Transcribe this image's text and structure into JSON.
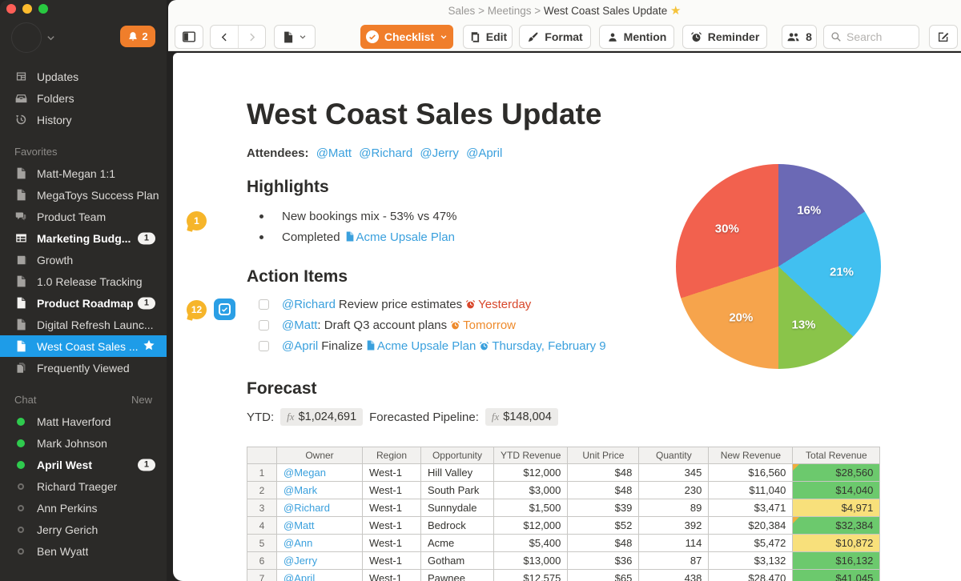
{
  "colors": {
    "accent_orange": "#f07e2b",
    "selected_blue": "#1e9ce8",
    "link_blue": "#3aa0dd",
    "badge_yellow": "#f6b52a",
    "online_green": "#2fcb4e",
    "cell_green": "#6cc96d",
    "cell_yellow": "#f8e07b"
  },
  "sidebar": {
    "notification_count": "2",
    "nav": [
      {
        "label": "Updates",
        "icon": "updates-icon"
      },
      {
        "label": "Folders",
        "icon": "folders-icon"
      },
      {
        "label": "History",
        "icon": "history-icon"
      }
    ],
    "favorites_header": "Favorites",
    "favorites": [
      {
        "label": "Matt-Megan 1:1",
        "icon": "document"
      },
      {
        "label": "MegaToys Success Plan",
        "icon": "document"
      },
      {
        "label": "Product Team",
        "icon": "chat"
      },
      {
        "label": "Marketing Budg...",
        "icon": "spreadsheet",
        "bold": true,
        "badge": "1"
      },
      {
        "label": "Growth",
        "icon": "slides"
      },
      {
        "label": "1.0 Release Tracking",
        "icon": "document"
      },
      {
        "label": "Product Roadmap",
        "icon": "document",
        "bold": true,
        "badge": "1"
      },
      {
        "label": "Digital Refresh Launc...",
        "icon": "document"
      },
      {
        "label": "West Coast Sales ...",
        "icon": "document",
        "selected": true,
        "starred": true
      },
      {
        "label": "Frequently Viewed",
        "icon": "stack"
      }
    ],
    "chat_header": "Chat",
    "chat_new_label": "New",
    "chats": [
      {
        "name": "Matt Haverford",
        "online": true
      },
      {
        "name": "Mark Johnson",
        "online": true
      },
      {
        "name": "April West",
        "online": true,
        "bold": true,
        "badge": "1"
      },
      {
        "name": "Richard Traeger",
        "online": false
      },
      {
        "name": "Ann Perkins",
        "online": false
      },
      {
        "name": "Jerry Gerich",
        "online": false
      },
      {
        "name": "Ben Wyatt",
        "online": false
      }
    ]
  },
  "toolbar": {
    "breadcrumb": {
      "items": [
        "Sales",
        "Meetings",
        "West Coast Sales Update"
      ],
      "separator": ">",
      "star": "★"
    },
    "checklist_label": "Checklist",
    "edit_label": "Edit",
    "format_label": "Format",
    "mention_label": "Mention",
    "reminder_label": "Reminder",
    "members_count": "8",
    "search": {
      "placeholder": "Search"
    }
  },
  "document": {
    "title": "West Coast Sales Update",
    "attendees_label": "Attendees:",
    "attendees": [
      "@Matt",
      "@Richard",
      "@Jerry",
      "@April"
    ],
    "highlights": {
      "heading": "Highlights",
      "comment_badge": "1",
      "items": [
        {
          "text": "New bookings mix - 53% vs 47%"
        },
        {
          "text": "Completed",
          "link": "Acme Upsale Plan"
        }
      ]
    },
    "action_items": {
      "heading": "Action Items",
      "comment_badge": "12",
      "items": [
        {
          "mention": "@Richard",
          "text": "Review price estimates",
          "due": "Yesterday",
          "due_color": "#d8472b"
        },
        {
          "mention": "@Matt",
          "text": ": Draft Q3 account plans",
          "due": "Tomorrow",
          "due_color": "#ee8a2b"
        },
        {
          "mention": "@April",
          "text": "Finalize",
          "link": "Acme Upsale Plan",
          "due": "Thursday, February 9",
          "due_color": "#3aa0dd"
        }
      ]
    },
    "forecast": {
      "heading": "Forecast",
      "ytd_label": "YTD:",
      "fx_symbol": "fx",
      "ytd_value": "$1,024,691",
      "pipeline_label": "Forecasted Pipeline:",
      "pipeline_value": "$148,004"
    }
  },
  "chart_data": {
    "type": "pie",
    "labels": [
      "16%",
      "21%",
      "13%",
      "20%",
      "30%"
    ],
    "values": [
      16,
      21,
      13,
      20,
      30
    ],
    "colors": [
      "#6b69b5",
      "#41c0f0",
      "#8ac44a",
      "#f6a44c",
      "#f2614e"
    ],
    "start_angle_deg": 0,
    "direction": "clockwise",
    "legend": "none",
    "label_color": "#ffffff"
  },
  "table": {
    "headers": [
      "",
      "Owner",
      "Region",
      "Opportunity",
      "YTD Revenue",
      "Unit Price",
      "Quantity",
      "New Revenue",
      "Total Revenue"
    ],
    "rows": [
      {
        "cells": [
          "1",
          "@Megan",
          "West-1",
          "Hill Valley",
          "$12,000",
          "$48",
          "345",
          "$16,560",
          "$28,560"
        ],
        "highlight": "green",
        "comment": true
      },
      {
        "cells": [
          "2",
          "@Mark",
          "West-1",
          "South Park",
          "$3,000",
          "$48",
          "230",
          "$11,040",
          "$14,040"
        ],
        "highlight": "green",
        "comment": false
      },
      {
        "cells": [
          "3",
          "@Richard",
          "West-1",
          "Sunnydale",
          "$1,500",
          "$39",
          "89",
          "$3,471",
          "$4,971"
        ],
        "highlight": "yellow",
        "comment": false
      },
      {
        "cells": [
          "4",
          "@Matt",
          "West-1",
          "Bedrock",
          "$12,000",
          "$52",
          "392",
          "$20,384",
          "$32,384"
        ],
        "highlight": "green",
        "comment": true
      },
      {
        "cells": [
          "5",
          "@Ann",
          "West-1",
          "Acme",
          "$5,400",
          "$48",
          "114",
          "$5,472",
          "$10,872"
        ],
        "highlight": "yellow",
        "comment": false
      },
      {
        "cells": [
          "6",
          "@Jerry",
          "West-1",
          "Gotham",
          "$13,000",
          "$36",
          "87",
          "$3,132",
          "$16,132"
        ],
        "highlight": "green",
        "comment": false
      },
      {
        "cells": [
          "7",
          "@April",
          "West-1",
          "Pawnee",
          "$12,575",
          "$65",
          "438",
          "$28,470",
          "$41,045"
        ],
        "highlight": "green",
        "comment": false
      }
    ]
  }
}
